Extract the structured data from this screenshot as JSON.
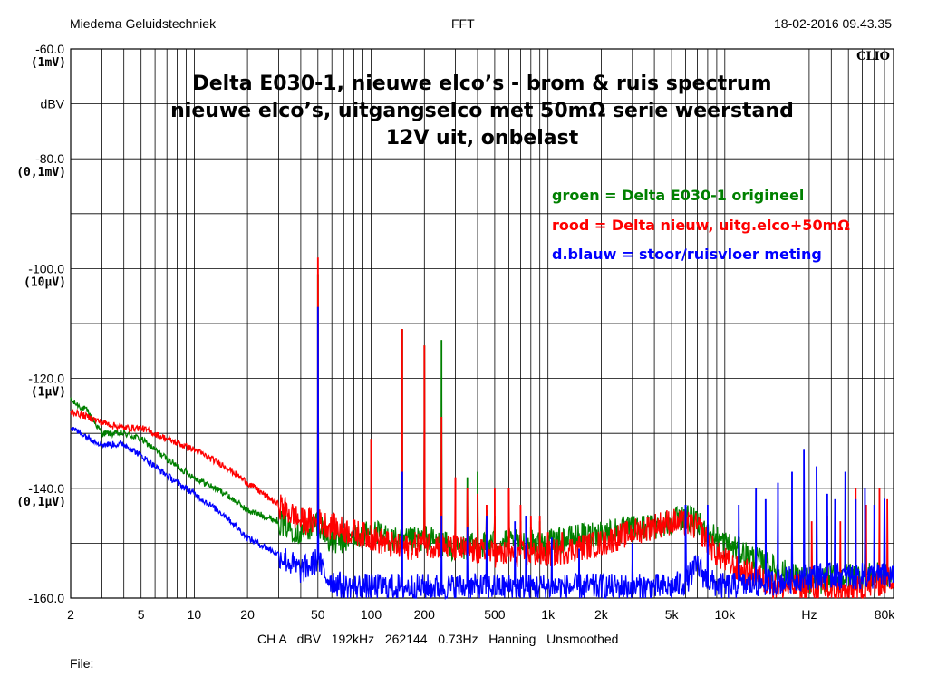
{
  "header": {
    "left": "Miedema Geluidstechniek",
    "center": "FFT",
    "right": "18-02-2016 09.43.35"
  },
  "brand": "CLIO",
  "footer": {
    "settings": "CH A   dBV   192kHz   262144   0.73Hz   Hanning   Unsmoothed",
    "file": "File:"
  },
  "colors": {
    "green": "#008000",
    "red": "#ff0000",
    "blue": "#0000ff",
    "grid": "#000000"
  },
  "chart_data": {
    "type": "line",
    "title": [
      "Delta E030-1, nieuwe elco’s  -  brom & ruis spectrum",
      "nieuwe elco’s, uitgangselco met 50mΩ serie weerstand",
      "12V uit, onbelast"
    ],
    "xlabel": "Hz",
    "ylabel": "dBV",
    "xscale": "log",
    "xlim": [
      2,
      90000
    ],
    "ylim": [
      -160,
      -60
    ],
    "grid": true,
    "x_ticks": [
      {
        "v": 2,
        "label": "2"
      },
      {
        "v": 5,
        "label": "5"
      },
      {
        "v": 10,
        "label": "10"
      },
      {
        "v": 20,
        "label": "20"
      },
      {
        "v": 50,
        "label": "50"
      },
      {
        "v": 100,
        "label": "100"
      },
      {
        "v": 200,
        "label": "200"
      },
      {
        "v": 500,
        "label": "500"
      },
      {
        "v": 1000,
        "label": "1k"
      },
      {
        "v": 2000,
        "label": "2k"
      },
      {
        "v": 5000,
        "label": "5k"
      },
      {
        "v": 10000,
        "label": "10k"
      },
      {
        "v": 30000,
        "label": "Hz"
      },
      {
        "v": 80000,
        "label": "80k"
      }
    ],
    "y_ticks": [
      {
        "v": -60,
        "label": "-60.0",
        "sub": "(1mV)"
      },
      {
        "v": -70,
        "label": "dBV",
        "sub": ""
      },
      {
        "v": -80,
        "label": "-80.0",
        "sub": "(0,1mV)"
      },
      {
        "v": -100,
        "label": "-100.0",
        "sub": "(10µV)"
      },
      {
        "v": -120,
        "label": "-120.0",
        "sub": "(1µV)"
      },
      {
        "v": -140,
        "label": "-140.0",
        "sub": "(0,1µV)"
      },
      {
        "v": -160,
        "label": "-160.0",
        "sub": ""
      }
    ],
    "legend": [
      {
        "text": "groen = Delta E030-1 origineel",
        "color": "#008000"
      },
      {
        "text": "rood = Delta nieuw, uitg.elco+50mΩ",
        "color": "#ff0000"
      },
      {
        "text": "d.blauw = stoor/ruisvloer meting",
        "color": "#0000ff"
      }
    ],
    "legend_position": "top-right",
    "series": [
      {
        "color": "#008000",
        "floor": [
          [
            2,
            -124
          ],
          [
            2.5,
            -126
          ],
          [
            3,
            -130
          ],
          [
            4,
            -130
          ],
          [
            5,
            -131
          ],
          [
            6,
            -133
          ],
          [
            8,
            -136
          ],
          [
            10,
            -138
          ],
          [
            15,
            -141
          ],
          [
            20,
            -144
          ],
          [
            30,
            -146
          ],
          [
            40,
            -148
          ],
          [
            46,
            -147
          ],
          [
            50,
            -146
          ],
          [
            60,
            -150
          ],
          [
            80,
            -149
          ],
          [
            100,
            -148
          ],
          [
            150,
            -150
          ],
          [
            200,
            -149
          ],
          [
            300,
            -151
          ],
          [
            500,
            -150
          ],
          [
            1000,
            -150
          ],
          [
            2000,
            -148
          ],
          [
            4000,
            -147
          ],
          [
            6000,
            -145
          ],
          [
            8000,
            -148
          ],
          [
            10000,
            -150
          ],
          [
            15000,
            -153
          ],
          [
            20000,
            -155
          ],
          [
            30000,
            -157
          ],
          [
            50000,
            -156
          ],
          [
            80000,
            -156
          ],
          [
            90000,
            -156
          ]
        ],
        "peaks": [
          [
            50,
            -101
          ],
          [
            100,
            -131
          ],
          [
            150,
            -111
          ],
          [
            200,
            -114
          ],
          [
            250,
            -113
          ],
          [
            300,
            -144
          ],
          [
            350,
            -138
          ],
          [
            400,
            -137
          ],
          [
            450,
            -144
          ],
          [
            500,
            -145
          ],
          [
            600,
            -147
          ],
          [
            700,
            -146
          ],
          [
            800,
            -147
          ],
          [
            900,
            -146
          ]
        ]
      },
      {
        "color": "#ff0000",
        "floor": [
          [
            2,
            -126
          ],
          [
            2.5,
            -127
          ],
          [
            3,
            -128
          ],
          [
            4,
            -129
          ],
          [
            5,
            -129
          ],
          [
            7,
            -131
          ],
          [
            10,
            -133
          ],
          [
            15,
            -136
          ],
          [
            20,
            -139
          ],
          [
            30,
            -143
          ],
          [
            40,
            -146
          ],
          [
            46,
            -146
          ],
          [
            50,
            -146
          ],
          [
            60,
            -147
          ],
          [
            80,
            -148
          ],
          [
            100,
            -149
          ],
          [
            150,
            -151
          ],
          [
            200,
            -150
          ],
          [
            300,
            -151
          ],
          [
            500,
            -152
          ],
          [
            1000,
            -152
          ],
          [
            2000,
            -150
          ],
          [
            3000,
            -148
          ],
          [
            5000,
            -146
          ],
          [
            7000,
            -147
          ],
          [
            9000,
            -152
          ],
          [
            12000,
            -155
          ],
          [
            15000,
            -156
          ],
          [
            20000,
            -158
          ],
          [
            30000,
            -158
          ],
          [
            40000,
            -159
          ],
          [
            50000,
            -159
          ],
          [
            80000,
            -157
          ],
          [
            90000,
            -156
          ]
        ],
        "peaks": [
          [
            50,
            -98
          ],
          [
            100,
            -131
          ],
          [
            150,
            -111
          ],
          [
            200,
            -114
          ],
          [
            250,
            -127
          ],
          [
            300,
            -138
          ],
          [
            350,
            -140
          ],
          [
            400,
            -141
          ],
          [
            450,
            -143
          ],
          [
            500,
            -140
          ],
          [
            600,
            -140
          ],
          [
            700,
            -143
          ],
          [
            800,
            -145
          ],
          [
            900,
            -145
          ],
          [
            1000,
            -148
          ],
          [
            1200,
            -148
          ],
          [
            1500,
            -149
          ],
          [
            31000,
            -146
          ],
          [
            38000,
            -145
          ],
          [
            45000,
            -146
          ],
          [
            55000,
            -140
          ],
          [
            63000,
            -143
          ],
          [
            75000,
            -140
          ],
          [
            83000,
            -142
          ]
        ]
      },
      {
        "color": "#0000ff",
        "floor": [
          [
            2,
            -129
          ],
          [
            3,
            -132
          ],
          [
            4,
            -132
          ],
          [
            5,
            -134
          ],
          [
            6,
            -136
          ],
          [
            8,
            -139
          ],
          [
            10,
            -141
          ],
          [
            15,
            -145
          ],
          [
            20,
            -149
          ],
          [
            30,
            -152
          ],
          [
            40,
            -155
          ],
          [
            46,
            -154
          ],
          [
            50,
            -153
          ],
          [
            55,
            -156
          ],
          [
            70,
            -158
          ],
          [
            100,
            -158
          ],
          [
            200,
            -158
          ],
          [
            500,
            -158
          ],
          [
            1000,
            -158
          ],
          [
            2000,
            -158
          ],
          [
            5000,
            -158
          ],
          [
            6000,
            -157
          ],
          [
            7000,
            -154
          ],
          [
            8000,
            -157
          ],
          [
            10000,
            -158
          ],
          [
            20000,
            -157
          ],
          [
            30000,
            -156
          ],
          [
            50000,
            -156
          ],
          [
            80000,
            -156
          ],
          [
            90000,
            -156
          ]
        ],
        "peaks": [
          [
            50,
            -107
          ],
          [
            150,
            -137
          ],
          [
            250,
            -145
          ],
          [
            350,
            -147
          ],
          [
            450,
            -145
          ],
          [
            650,
            -146
          ],
          [
            750,
            -145
          ],
          [
            1050,
            -149
          ],
          [
            1500,
            -151
          ],
          [
            3000,
            -150
          ],
          [
            6000,
            -143
          ],
          [
            8000,
            -143
          ],
          [
            12000,
            -143
          ],
          [
            15000,
            -140
          ],
          [
            17000,
            -142
          ],
          [
            20000,
            -139
          ],
          [
            24000,
            -137
          ],
          [
            28000,
            -133
          ],
          [
            33000,
            -136
          ],
          [
            38000,
            -141
          ],
          [
            42000,
            -142
          ],
          [
            48000,
            -137
          ],
          [
            55000,
            -142
          ],
          [
            62000,
            -140
          ],
          [
            70000,
            -143
          ],
          [
            80000,
            -142
          ]
        ]
      }
    ]
  }
}
